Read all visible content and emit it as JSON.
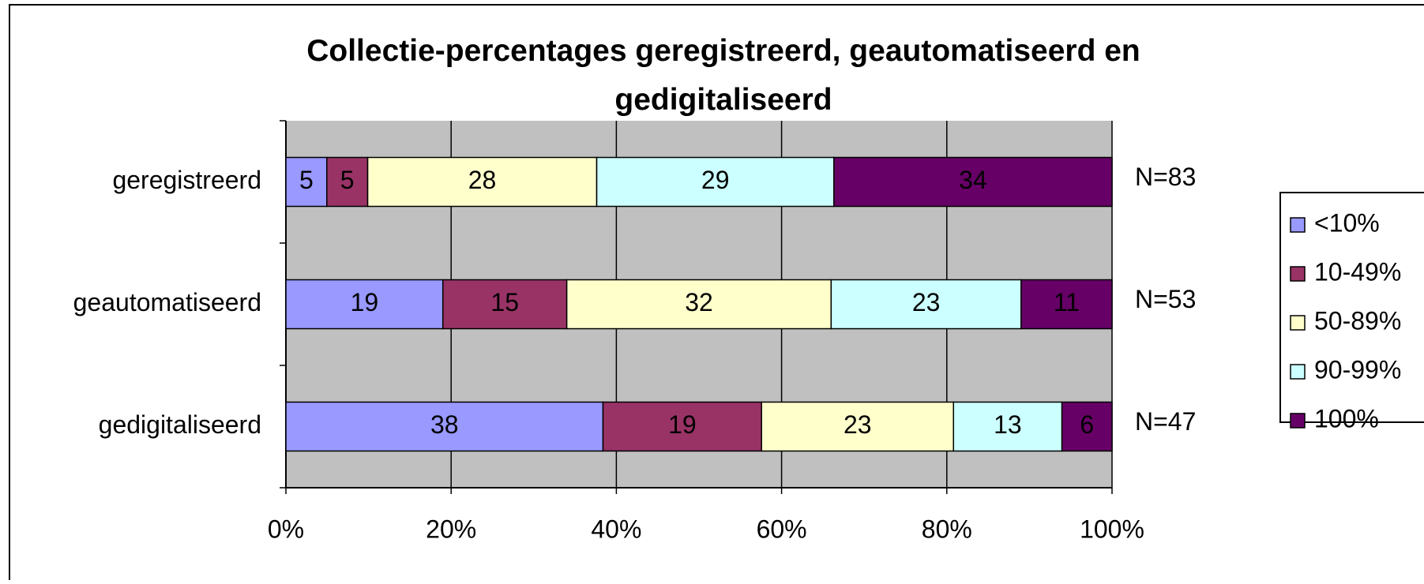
{
  "chart_data": {
    "type": "bar",
    "orientation": "horizontal",
    "stacking": "percent",
    "title": "Collectie-percentages geregistreerd, geautomatiseerd en gedigitaliseerd",
    "categories": [
      "geregistreerd",
      "geautomatiseerd",
      "gedigitaliseerd"
    ],
    "series": [
      {
        "name": "<10%",
        "color": "#9999ff",
        "values": [
          5,
          19,
          38
        ]
      },
      {
        "name": "10-49%",
        "color": "#993366",
        "values": [
          5,
          15,
          19
        ]
      },
      {
        "name": "50-89%",
        "color": "#ffffcc",
        "values": [
          28,
          32,
          23
        ]
      },
      {
        "name": "90-99%",
        "color": "#ccffff",
        "values": [
          29,
          23,
          13
        ]
      },
      {
        "name": "100%",
        "color": "#660066",
        "values": [
          34,
          11,
          6
        ]
      }
    ],
    "annotations": [
      "N=83",
      "N=53",
      "N=47"
    ],
    "xlim": [
      0,
      100
    ],
    "xticks": [
      {
        "value": 0,
        "label": "0%"
      },
      {
        "value": 20,
        "label": "20%"
      },
      {
        "value": 40,
        "label": "40%"
      },
      {
        "value": 60,
        "label": "60%"
      },
      {
        "value": 80,
        "label": "80%"
      },
      {
        "value": 100,
        "label": "100%"
      }
    ],
    "grid": true,
    "legend": "right"
  }
}
